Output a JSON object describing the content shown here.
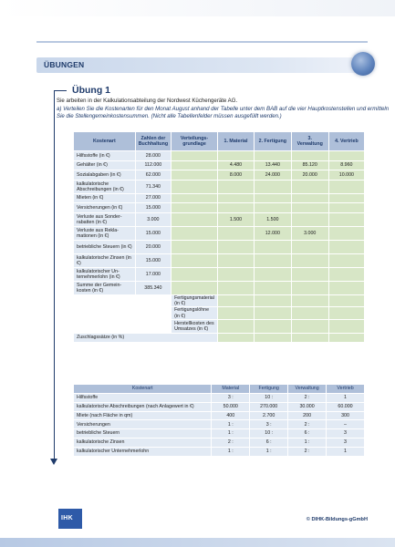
{
  "section": {
    "title": "ÜBUNGEN"
  },
  "exercise": {
    "title": "Übung 1",
    "intro": "Sie arbeiten in der Kalkulationsabteilung der Nordwest Küchengeräte AG.",
    "task": "a) Verteilen Sie die Kostenarten für den Monat August anhand der Tabelle unter dem BAB auf die vier Hauptkosten­stellen und ermitteln Sie die Stellengemeinkostensummen. (Nicht alle Tabellenfelder müssen ausgefüllt werden.)"
  },
  "bab": {
    "headers": {
      "kostenart": "Kostenart",
      "buchhaltung": "Zahlen der Buchhaltung",
      "grundlage": "Verteilungs-grundlage",
      "material": "1. Material",
      "fertigung": "2. Fertigung",
      "verwaltung": "3. Verwaltung",
      "vertrieb": "4. Vertrieb"
    },
    "rows": [
      {
        "label": "Hilfsstoffe (in €)",
        "buch": "28.000",
        "grund": "",
        "mat": "",
        "fert": "",
        "verw": "",
        "vert": ""
      },
      {
        "label": "Gehälter (in €)",
        "buch": "112.000",
        "grund": "",
        "mat": "4.480",
        "fert": "13.440",
        "verw": "85.120",
        "vert": "8.960"
      },
      {
        "label": "Sozialabgaben (in €)",
        "buch": "62.000",
        "grund": "",
        "mat": "8.000",
        "fert": "24.000",
        "verw": "20.000",
        "vert": "10.000"
      },
      {
        "label": "kalkulatorische Abschreibungen (in €)",
        "buch": "71.340",
        "grund": "",
        "mat": "",
        "fert": "",
        "verw": "",
        "vert": ""
      },
      {
        "label": "Mieten (in €)",
        "buch": "27.000",
        "grund": "",
        "mat": "",
        "fert": "",
        "verw": "",
        "vert": ""
      },
      {
        "label": "Versicherungen (in €)",
        "buch": "15.000",
        "grund": "",
        "mat": "",
        "fert": "",
        "verw": "",
        "vert": ""
      },
      {
        "label": "Verluste aus Sonder­rabatten (in €)",
        "buch": "3.000",
        "grund": "",
        "mat": "1.500",
        "fert": "1.500",
        "verw": "",
        "vert": ""
      },
      {
        "label": "Verluste aus Rekla­mationen (in €)",
        "buch": "15.000",
        "grund": "",
        "mat": "",
        "fert": "12.000",
        "verw": "3.000",
        "vert": ""
      },
      {
        "label": "betriebliche Steuern (in €)",
        "buch": "20.000",
        "grund": "",
        "mat": "",
        "fert": "",
        "verw": "",
        "vert": ""
      },
      {
        "label": "kalkulatorische Zinsen (in €)",
        "buch": "15.000",
        "grund": "",
        "mat": "",
        "fert": "",
        "verw": "",
        "vert": ""
      },
      {
        "label": "kalkulatorischer Un­ternehmerlohn (in €)",
        "buch": "17.000",
        "grund": "",
        "mat": "",
        "fert": "",
        "verw": "",
        "vert": ""
      },
      {
        "label": "Summe der Gemein­kosten (in €)",
        "buch": "385.340",
        "grund": "",
        "mat": "",
        "fert": "",
        "verw": "",
        "vert": ""
      }
    ],
    "sub_rows": [
      "Fertigungsmaterial (in €)",
      "Fertigungslöhne (in €)",
      "Herstellkosten des Umsatzes (in €)"
    ],
    "zuschlag_label": "Zuschlagssätze (in %)"
  },
  "dist": {
    "headers": {
      "kostenart": "Kostenart",
      "material": "Material",
      "fertigung": "Fertigung",
      "verwaltung": "Verwaltung",
      "vertrieb": "Vertrieb"
    },
    "rows": [
      {
        "label": "Hilfsstoffe",
        "mat": "3 :",
        "fert": "10 :",
        "verw": "2 :",
        "vert": "1"
      },
      {
        "label": "kalkulatorische Abschreibungen (nach Anlagewert in €)",
        "mat": "50.000",
        "fert": "270.000",
        "verw": "30.000",
        "vert": "60.000"
      },
      {
        "label": "Miete (nach Fläche in qm)",
        "mat": "400",
        "fert": "2.700",
        "verw": "200",
        "vert": "300"
      },
      {
        "label": "Versicherungen",
        "mat": "1 :",
        "fert": "3 :",
        "verw": "2 :",
        "vert": "–"
      },
      {
        "label": "betriebliche Steuern",
        "mat": "1 :",
        "fert": "10 :",
        "verw": "6 :",
        "vert": "3"
      },
      {
        "label": "kalkulatorische Zinsen",
        "mat": "2 :",
        "fert": "6 :",
        "verw": "1 :",
        "vert": "3"
      },
      {
        "label": "kalkulatorischer Unternehmerlohn",
        "mat": "1 :",
        "fert": "1 :",
        "verw": "2 :",
        "vert": "1"
      }
    ]
  },
  "footer": {
    "logo_text": "IHK",
    "copyright": "© DIHK-Bildungs-gGmbH"
  },
  "colors": {
    "header_blue": "#aebfd9",
    "label_blue": "#e2eaf4",
    "cell_green": "#d7e6c6",
    "accent": "#1f3b6b"
  }
}
